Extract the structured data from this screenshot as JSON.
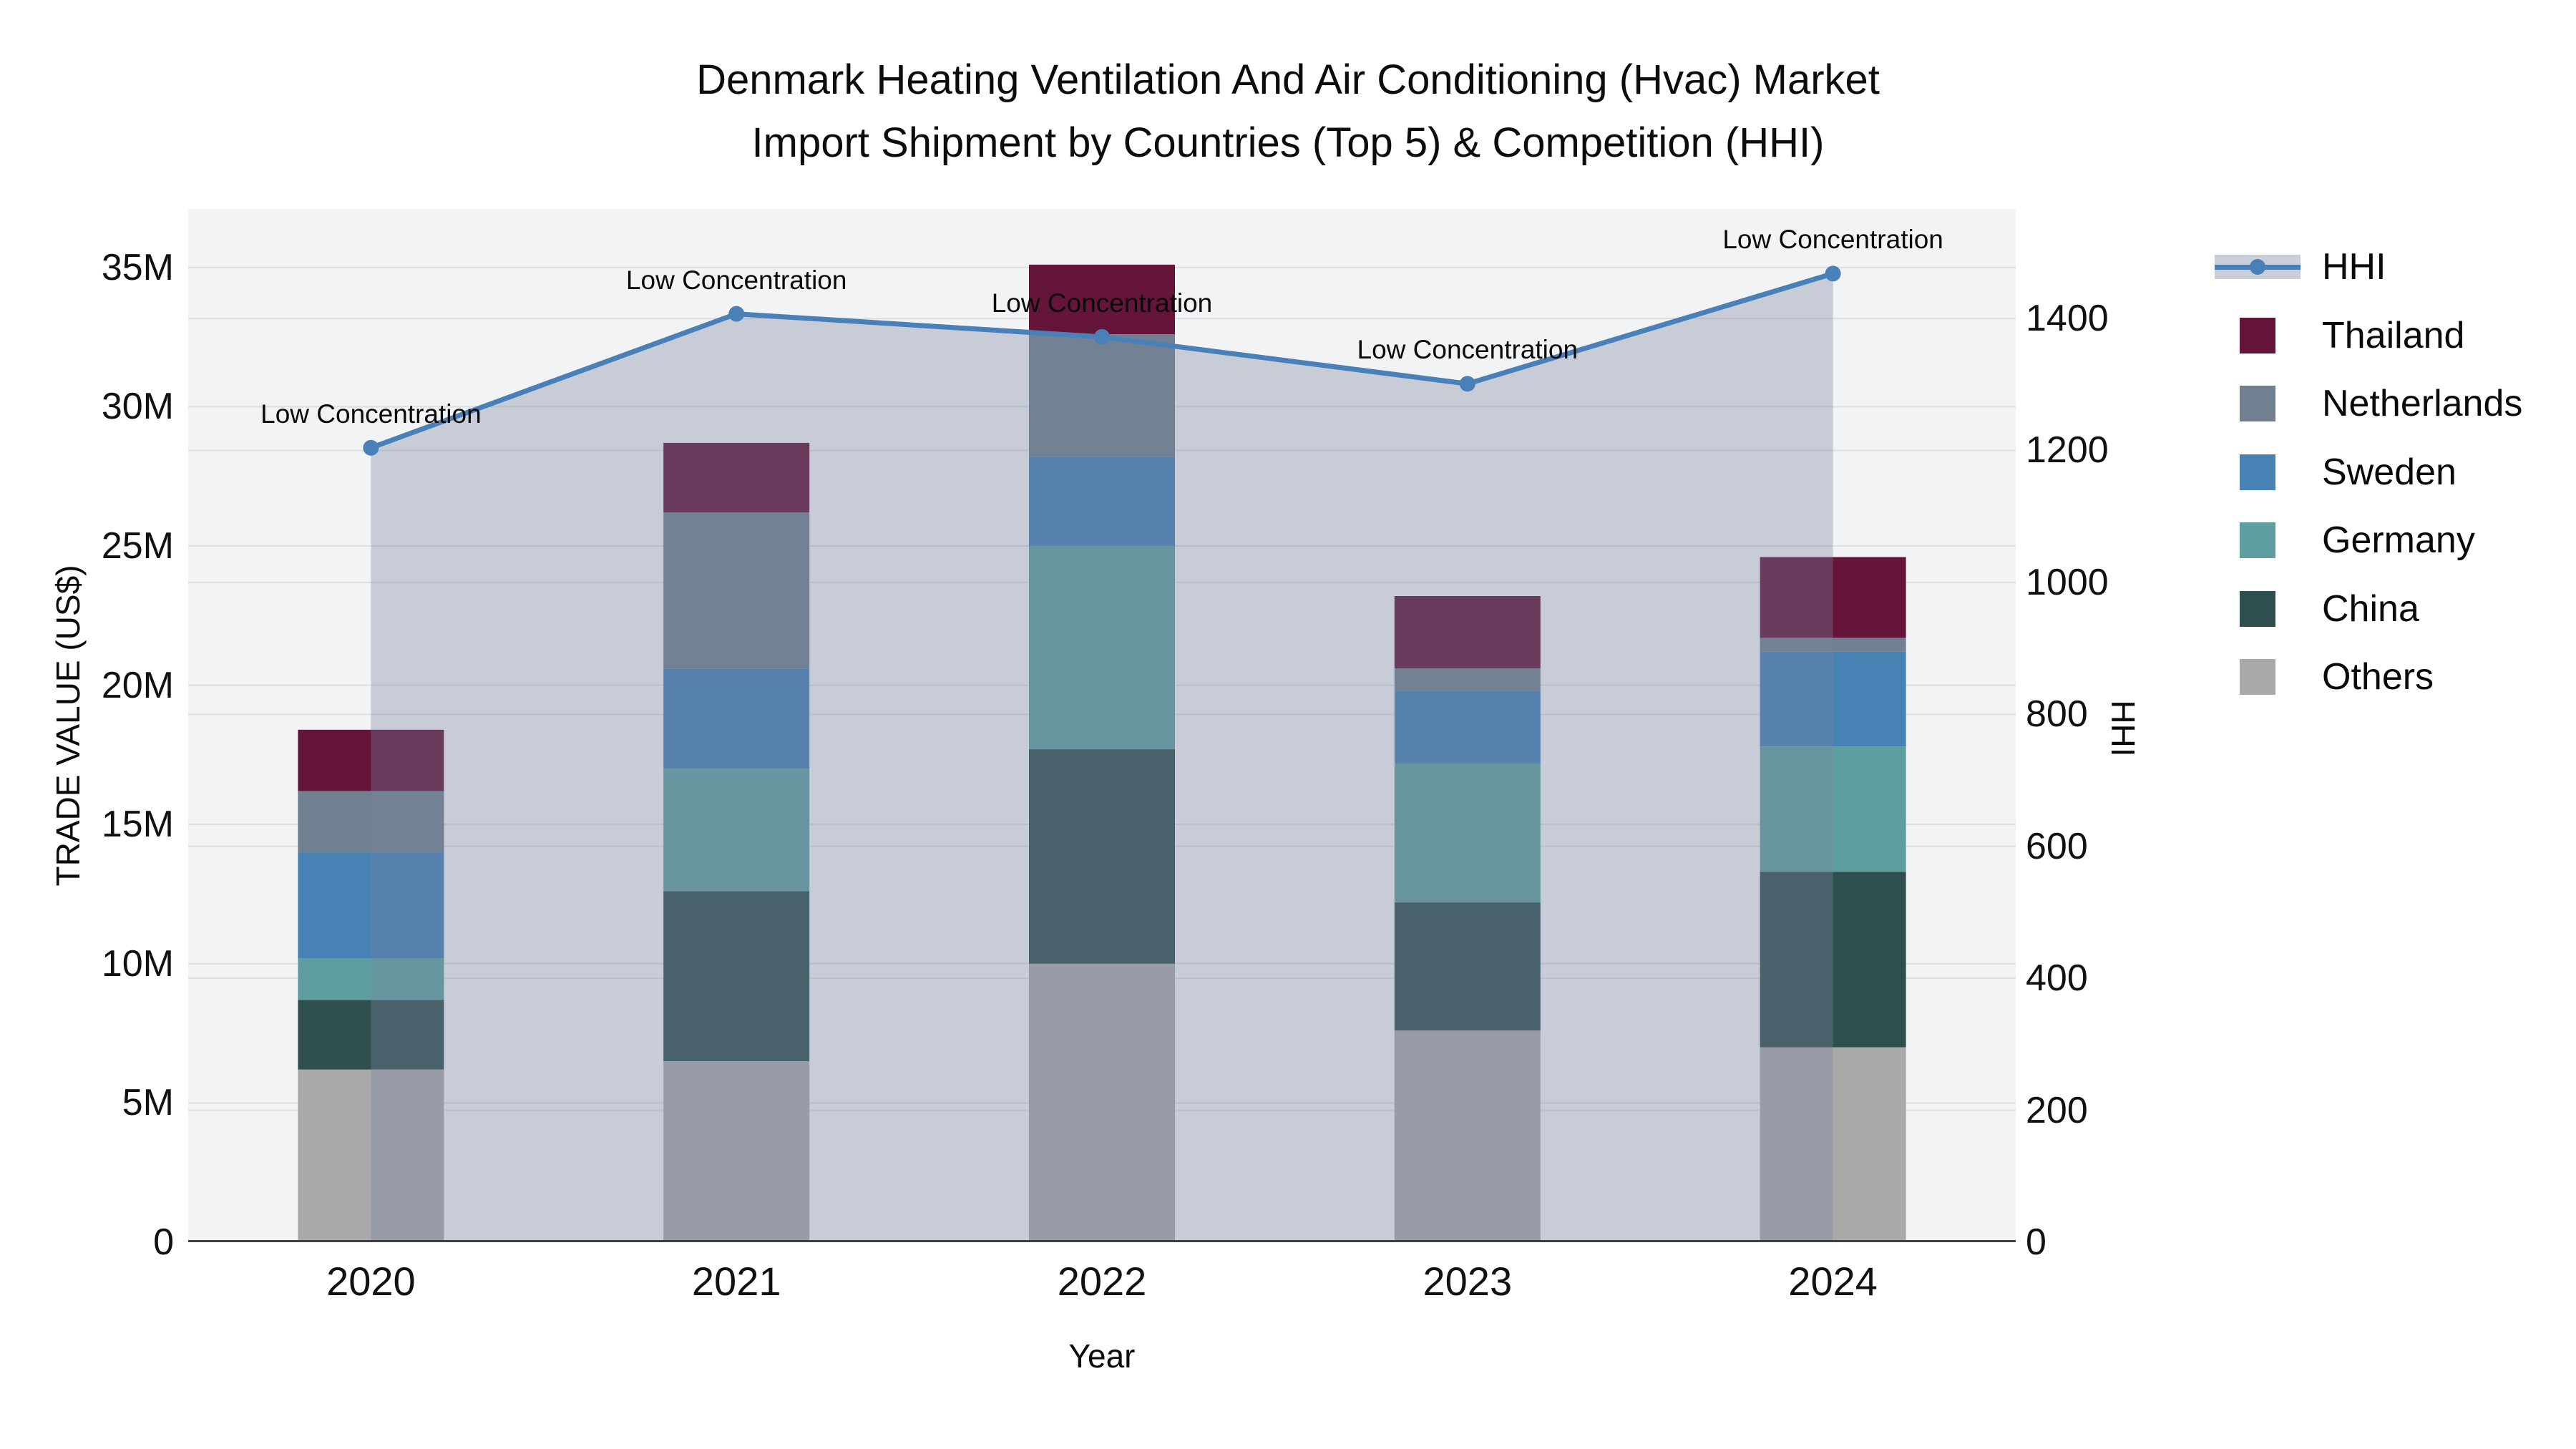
{
  "chart_data": {
    "type": "bar+line",
    "title_lines": [
      "Denmark Heating Ventilation And Air Conditioning (Hvac) Market",
      "Import Shipment by Countries (Top 5) & Competition (HHI)"
    ],
    "categories": [
      "2020",
      "2021",
      "2022",
      "2023",
      "2024"
    ],
    "series": [
      {
        "name": "Others",
        "color": "#a9a9a9",
        "values_musd": [
          6.2,
          6.5,
          10.0,
          7.6,
          7.0
        ]
      },
      {
        "name": "China",
        "color": "#2f4f4f",
        "values_musd": [
          2.5,
          6.1,
          7.7,
          4.6,
          6.3
        ]
      },
      {
        "name": "Germany",
        "color": "#5f9ea0",
        "values_musd": [
          1.5,
          4.4,
          7.3,
          5.0,
          4.5
        ]
      },
      {
        "name": "Sweden",
        "color": "#4682b4",
        "values_musd": [
          3.8,
          3.6,
          3.2,
          2.6,
          3.4
        ]
      },
      {
        "name": "Netherlands",
        "color": "#708090",
        "values_musd": [
          2.2,
          5.6,
          4.4,
          0.8,
          0.5
        ]
      },
      {
        "name": "Thailand",
        "color": "#651539",
        "values_musd": [
          2.2,
          2.5,
          2.5,
          2.6,
          2.9
        ]
      }
    ],
    "line": {
      "name": "HHI",
      "color": "#4a80b8",
      "fill_color": "rgba(119,132,160,0.35)",
      "values": [
        1204,
        1407,
        1372,
        1301,
        1468
      ]
    },
    "annotations": [
      "Low Concentration",
      "Low Concentration",
      "Low Concentration",
      "Low Concentration",
      "Low Concentration"
    ],
    "y_left": {
      "label": "TRADE VALUE (US$)",
      "range_musd": [
        0,
        37.1
      ],
      "tick_values": [
        0,
        5,
        10,
        15,
        20,
        25,
        30,
        35
      ],
      "tick_labels": [
        "0",
        "5M",
        "10M",
        "15M",
        "20M",
        "25M",
        "30M",
        "35M"
      ]
    },
    "y_right": {
      "label": "HHI",
      "range": [
        0,
        1566
      ],
      "tick_values": [
        0,
        200,
        400,
        600,
        800,
        1000,
        1200,
        1400
      ],
      "tick_labels": [
        "0",
        "200",
        "400",
        "600",
        "800",
        "1000",
        "1200",
        "1400"
      ]
    },
    "x_axis": {
      "label": "Year"
    },
    "legend_order": [
      "HHI",
      "Thailand",
      "Netherlands",
      "Sweden",
      "Germany",
      "China",
      "Others"
    ],
    "grid_color": "#dcdee2",
    "plot_bg": "#f2f3f4",
    "axisline_color": "#3b4045"
  }
}
